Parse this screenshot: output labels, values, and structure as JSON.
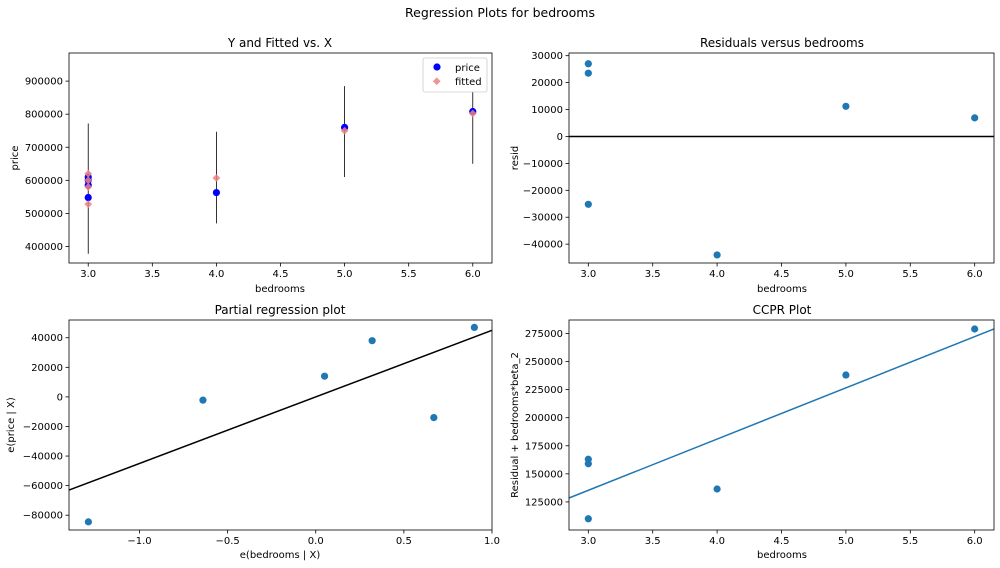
{
  "figure_title": "Regression Plots for bedrooms",
  "colors": {
    "price": "#0000ff",
    "fitted": "#f08080",
    "points": "#1f77b4",
    "regline": "#000000",
    "ccpr_line": "#1f77b4"
  },
  "chart_data": [
    {
      "id": "yfit",
      "type": "scatter",
      "title": "Y and Fitted vs. X",
      "xlabel": "bedrooms",
      "ylabel": "price",
      "xlim": [
        2.85,
        6.15
      ],
      "ylim": [
        350000,
        985000
      ],
      "xticks": [
        3.0,
        3.5,
        4.0,
        4.5,
        5.0,
        5.5,
        6.0
      ],
      "xtick_labels": [
        "3.0",
        "3.5",
        "4.0",
        "4.5",
        "5.0",
        "5.5",
        "6.0"
      ],
      "yticks": [
        400000,
        500000,
        600000,
        700000,
        800000,
        900000
      ],
      "ytick_labels": [
        "400000",
        "500000",
        "600000",
        "700000",
        "800000",
        "900000"
      ],
      "legend": {
        "position": "top-right",
        "entries": [
          "price",
          "fitted"
        ]
      },
      "series": [
        {
          "name": "price",
          "marker": "circle",
          "x": [
            3,
            3,
            3,
            3,
            4,
            5,
            6
          ],
          "y": [
            548000,
            585000,
            600000,
            610000,
            563000,
            760000,
            808000
          ]
        },
        {
          "name": "fitted",
          "marker": "diamond",
          "x": [
            3,
            3,
            3,
            3,
            4,
            5,
            6
          ],
          "y": [
            528000,
            580000,
            600000,
            620000,
            607000,
            750000,
            802000
          ]
        }
      ],
      "prediction_intervals": [
        {
          "x": 3,
          "low": 378000,
          "high": 772000
        },
        {
          "x": 4,
          "low": 470000,
          "high": 747000
        },
        {
          "x": 5,
          "low": 610000,
          "high": 885000
        },
        {
          "x": 6,
          "low": 650000,
          "high": 955000
        }
      ]
    },
    {
      "id": "resid",
      "type": "scatter",
      "title": "Residuals versus bedrooms",
      "xlabel": "bedrooms",
      "ylabel": "resid",
      "xlim": [
        2.85,
        6.15
      ],
      "ylim": [
        -47000,
        31000
      ],
      "xticks": [
        3.0,
        3.5,
        4.0,
        4.5,
        5.0,
        5.5,
        6.0
      ],
      "xtick_labels": [
        "3.0",
        "3.5",
        "4.0",
        "4.5",
        "5.0",
        "5.5",
        "6.0"
      ],
      "yticks": [
        -40000,
        -30000,
        -20000,
        -10000,
        0,
        10000,
        20000,
        30000
      ],
      "ytick_labels": [
        "−40000",
        "−30000",
        "−20000",
        "−10000",
        "0",
        "10000",
        "20000",
        "30000"
      ],
      "hline": 0,
      "series": [
        {
          "x": [
            3,
            3,
            3,
            4,
            5,
            6
          ],
          "y": [
            27000,
            23500,
            -25200,
            -44000,
            11200,
            6900
          ]
        }
      ]
    },
    {
      "id": "partreg",
      "type": "scatter",
      "title": "Partial regression plot",
      "xlabel": "e(bedrooms | X)",
      "ylabel": "e(price | X)",
      "xlim": [
        -1.4,
        1.0
      ],
      "ylim": [
        -90000,
        52000
      ],
      "xticks": [
        -1.0,
        -0.5,
        0.0,
        0.5,
        1.0
      ],
      "xtick_labels": [
        "−1.0",
        "−0.5",
        "0.0",
        "0.5",
        "1.0"
      ],
      "yticks": [
        -80000,
        -60000,
        -40000,
        -20000,
        0,
        20000,
        40000
      ],
      "ytick_labels": [
        "−80000",
        "−60000",
        "−40000",
        "−20000",
        "0",
        "20000",
        "40000"
      ],
      "fit_line": {
        "x": [
          -1.4,
          1.0
        ],
        "y": [
          -63000,
          45000
        ]
      },
      "series": [
        {
          "x": [
            -1.29,
            -0.64,
            0.05,
            0.32,
            0.67,
            0.9
          ],
          "y": [
            -84500,
            -2200,
            14000,
            38000,
            -14000,
            47000
          ]
        }
      ]
    },
    {
      "id": "ccpr",
      "type": "scatter",
      "title": "CCPR Plot",
      "xlabel": "bedrooms",
      "ylabel": "Residual + bedrooms*beta_2",
      "xlim": [
        2.85,
        6.15
      ],
      "ylim": [
        100000,
        287000
      ],
      "xticks": [
        3.0,
        3.5,
        4.0,
        4.5,
        5.0,
        5.5,
        6.0
      ],
      "xtick_labels": [
        "3.0",
        "3.5",
        "4.0",
        "4.5",
        "5.0",
        "5.5",
        "6.0"
      ],
      "yticks": [
        125000,
        150000,
        175000,
        200000,
        225000,
        250000,
        275000
      ],
      "ytick_labels": [
        "125000",
        "150000",
        "175000",
        "200000",
        "225000",
        "250000",
        "275000"
      ],
      "fit_line": {
        "x": [
          2.85,
          6.15
        ],
        "y": [
          128500,
          279000
        ]
      },
      "series": [
        {
          "x": [
            3,
            3,
            3,
            4,
            5,
            6
          ],
          "y": [
            163000,
            159000,
            110000,
            136500,
            238000,
            279000
          ]
        }
      ]
    }
  ]
}
